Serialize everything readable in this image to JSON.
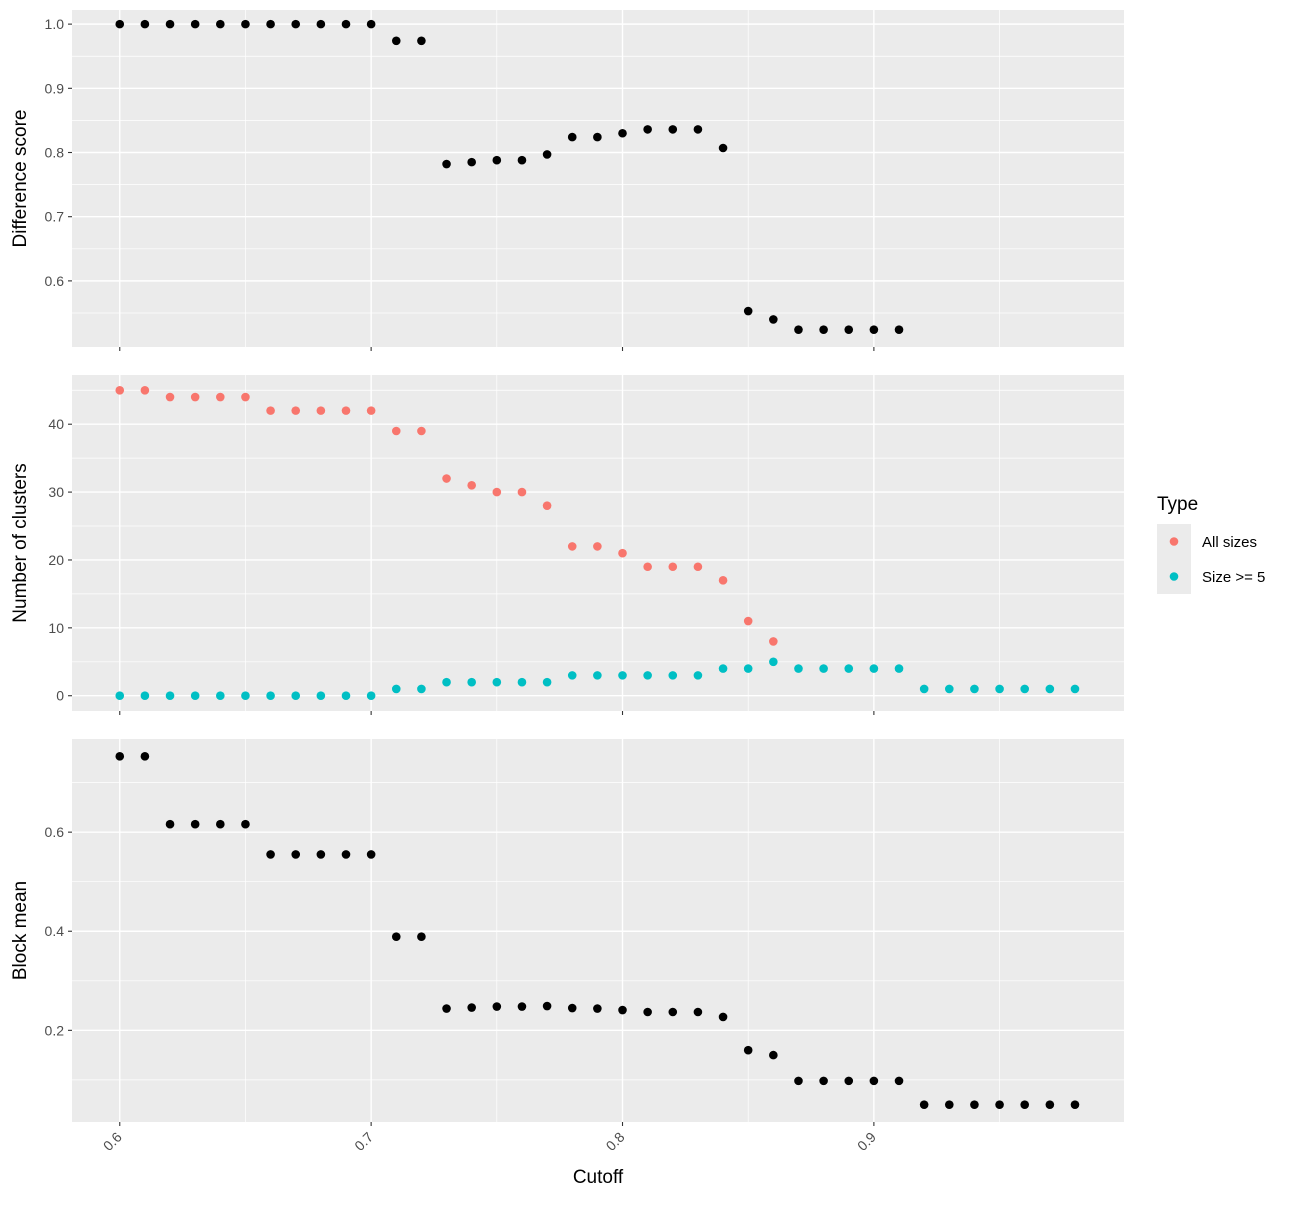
{
  "chart_data": [
    {
      "type": "scatter",
      "ylabel": "Difference score",
      "xlim": [
        0.581,
        0.9995
      ],
      "ylim": [
        0.497,
        1.022
      ],
      "yticks": [
        0.6,
        0.7,
        0.8,
        0.9,
        1.0
      ],
      "ytick_labels": [
        "0.6",
        "0.7",
        "0.8",
        "0.9",
        "1.0"
      ],
      "grid": true,
      "series": [
        {
          "color": "#000000",
          "points": [
            [
              0.6,
              1.0
            ],
            [
              0.61,
              1.0
            ],
            [
              0.62,
              1.0
            ],
            [
              0.63,
              1.0
            ],
            [
              0.64,
              1.0
            ],
            [
              0.65,
              1.0
            ],
            [
              0.66,
              1.0
            ],
            [
              0.67,
              1.0
            ],
            [
              0.68,
              1.0
            ],
            [
              0.69,
              1.0
            ],
            [
              0.7,
              1.0
            ],
            [
              0.71,
              0.974
            ],
            [
              0.72,
              0.974
            ],
            [
              0.73,
              0.782
            ],
            [
              0.74,
              0.785
            ],
            [
              0.75,
              0.788
            ],
            [
              0.76,
              0.788
            ],
            [
              0.77,
              0.797
            ],
            [
              0.78,
              0.824
            ],
            [
              0.79,
              0.824
            ],
            [
              0.8,
              0.83
            ],
            [
              0.81,
              0.836
            ],
            [
              0.82,
              0.836
            ],
            [
              0.83,
              0.836
            ],
            [
              0.84,
              0.807
            ],
            [
              0.85,
              0.553
            ],
            [
              0.86,
              0.54
            ],
            [
              0.87,
              0.524
            ],
            [
              0.88,
              0.524
            ],
            [
              0.89,
              0.524
            ],
            [
              0.9,
              0.524
            ],
            [
              0.91,
              0.524
            ]
          ]
        }
      ]
    },
    {
      "type": "scatter",
      "ylabel": "Number of clusters",
      "xlim": [
        0.581,
        0.9995
      ],
      "ylim": [
        -2.25,
        47.25
      ],
      "yticks": [
        0,
        10,
        20,
        30,
        40
      ],
      "ytick_labels": [
        "0",
        "10",
        "20",
        "30",
        "40"
      ],
      "grid": true,
      "legend": {
        "title": "Type",
        "position": "right",
        "entries": [
          {
            "label": "All sizes",
            "color": "#f8766d"
          },
          {
            "label": "Size >= 5",
            "color": "#00bfc4"
          }
        ]
      },
      "series": [
        {
          "name": "All sizes",
          "color": "#f8766d",
          "points": [
            [
              0.6,
              45
            ],
            [
              0.61,
              45
            ],
            [
              0.62,
              44
            ],
            [
              0.63,
              44
            ],
            [
              0.64,
              44
            ],
            [
              0.65,
              44
            ],
            [
              0.66,
              42
            ],
            [
              0.67,
              42
            ],
            [
              0.68,
              42
            ],
            [
              0.69,
              42
            ],
            [
              0.7,
              42
            ],
            [
              0.71,
              39
            ],
            [
              0.72,
              39
            ],
            [
              0.73,
              32
            ],
            [
              0.74,
              31
            ],
            [
              0.75,
              30
            ],
            [
              0.76,
              30
            ],
            [
              0.77,
              28
            ],
            [
              0.78,
              22
            ],
            [
              0.79,
              22
            ],
            [
              0.8,
              21
            ],
            [
              0.81,
              19
            ],
            [
              0.82,
              19
            ],
            [
              0.83,
              19
            ],
            [
              0.84,
              17
            ],
            [
              0.85,
              11
            ],
            [
              0.86,
              8
            ]
          ]
        },
        {
          "name": "Size >= 5",
          "color": "#00bfc4",
          "points": [
            [
              0.6,
              0
            ],
            [
              0.61,
              0
            ],
            [
              0.62,
              0
            ],
            [
              0.63,
              0
            ],
            [
              0.64,
              0
            ],
            [
              0.65,
              0
            ],
            [
              0.66,
              0
            ],
            [
              0.67,
              0
            ],
            [
              0.68,
              0
            ],
            [
              0.69,
              0
            ],
            [
              0.7,
              0
            ],
            [
              0.71,
              1
            ],
            [
              0.72,
              1
            ],
            [
              0.73,
              2
            ],
            [
              0.74,
              2
            ],
            [
              0.75,
              2
            ],
            [
              0.76,
              2
            ],
            [
              0.77,
              2
            ],
            [
              0.78,
              3
            ],
            [
              0.79,
              3
            ],
            [
              0.8,
              3
            ],
            [
              0.81,
              3
            ],
            [
              0.82,
              3
            ],
            [
              0.83,
              3
            ],
            [
              0.84,
              4
            ],
            [
              0.85,
              4
            ],
            [
              0.86,
              5
            ],
            [
              0.87,
              4
            ],
            [
              0.88,
              4
            ],
            [
              0.89,
              4
            ],
            [
              0.9,
              4
            ],
            [
              0.91,
              4
            ],
            [
              0.92,
              1
            ],
            [
              0.93,
              1
            ],
            [
              0.94,
              1
            ],
            [
              0.95,
              1
            ],
            [
              0.96,
              1
            ],
            [
              0.97,
              1
            ],
            [
              0.98,
              1
            ]
          ]
        }
      ]
    },
    {
      "type": "scatter",
      "ylabel": "Block mean",
      "xlabel": "Cutoff",
      "xlim": [
        0.581,
        0.9995
      ],
      "ylim": [
        0.015,
        0.788
      ],
      "yticks": [
        0.2,
        0.4,
        0.6
      ],
      "ytick_labels": [
        "0.2",
        "0.4",
        "0.6"
      ],
      "xticks": [
        0.6,
        0.7,
        0.8,
        0.9
      ],
      "xtick_labels": [
        "0.6",
        "0.7",
        "0.8",
        "0.9"
      ],
      "grid": true,
      "series": [
        {
          "color": "#000000",
          "points": [
            [
              0.6,
              0.753
            ],
            [
              0.61,
              0.753
            ],
            [
              0.62,
              0.616
            ],
            [
              0.63,
              0.616
            ],
            [
              0.64,
              0.616
            ],
            [
              0.65,
              0.616
            ],
            [
              0.66,
              0.555
            ],
            [
              0.67,
              0.555
            ],
            [
              0.68,
              0.555
            ],
            [
              0.69,
              0.555
            ],
            [
              0.7,
              0.555
            ],
            [
              0.71,
              0.389
            ],
            [
              0.72,
              0.389
            ],
            [
              0.73,
              0.244
            ],
            [
              0.74,
              0.246
            ],
            [
              0.75,
              0.248
            ],
            [
              0.76,
              0.248
            ],
            [
              0.77,
              0.249
            ],
            [
              0.78,
              0.245
            ],
            [
              0.79,
              0.244
            ],
            [
              0.8,
              0.241
            ],
            [
              0.81,
              0.237
            ],
            [
              0.82,
              0.237
            ],
            [
              0.83,
              0.237
            ],
            [
              0.84,
              0.227
            ],
            [
              0.85,
              0.16
            ],
            [
              0.86,
              0.15
            ],
            [
              0.87,
              0.098
            ],
            [
              0.88,
              0.098
            ],
            [
              0.89,
              0.098
            ],
            [
              0.9,
              0.098
            ],
            [
              0.91,
              0.098
            ],
            [
              0.92,
              0.05
            ],
            [
              0.93,
              0.05
            ],
            [
              0.94,
              0.05
            ],
            [
              0.95,
              0.05
            ],
            [
              0.96,
              0.05
            ],
            [
              0.97,
              0.05
            ],
            [
              0.98,
              0.05
            ]
          ]
        }
      ]
    }
  ]
}
